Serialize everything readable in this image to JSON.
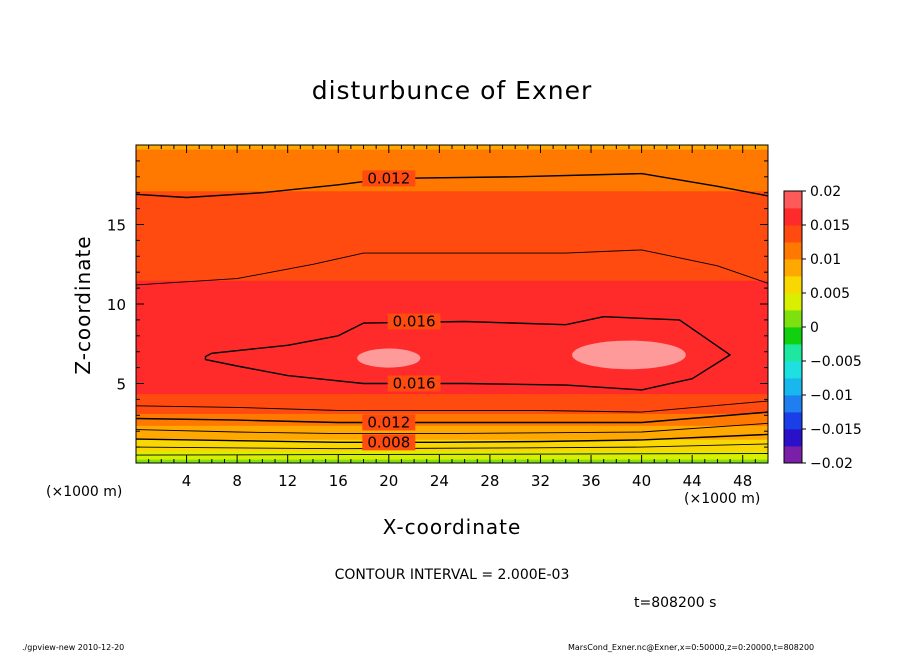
{
  "chart_data": {
    "type": "contour",
    "title": "disturbunce of Exner",
    "xlabel": "X-coordinate",
    "ylabel": "Z-coordinate",
    "x_units": "(×1000 m)",
    "y_units": "(×1000 m)",
    "xlim": [
      0,
      50
    ],
    "ylim": [
      0,
      20
    ],
    "x_ticks": [
      4,
      8,
      12,
      16,
      20,
      24,
      28,
      32,
      36,
      40,
      44,
      48
    ],
    "y_ticks": [
      5,
      10,
      15
    ],
    "colorbar": {
      "min": -0.02,
      "max": 0.02,
      "step": 0.0025,
      "tick_values": [
        0.02,
        0.015,
        0.01,
        0.005,
        0,
        -0.005,
        -0.01,
        -0.015,
        -0.02
      ],
      "tick_labels": [
        "0.02",
        "0.015",
        "0.01",
        "0.005",
        "0",
        "−0.005",
        "−0.01",
        "−0.015",
        "−0.02"
      ],
      "colors": [
        "#7a1fa8",
        "#2a10c8",
        "#1a3fe8",
        "#1f7ff0",
        "#18b8ee",
        "#1ee0e0",
        "#1ee8a0",
        "#10d010",
        "#7fe010",
        "#d8f000",
        "#f8d800",
        "#ffa800",
        "#ff7800",
        "#ff4a10",
        "#ff2a2a",
        "#ff5a5a",
        "#ff9a9a"
      ]
    },
    "fill_profile": {
      "z": [
        0,
        0.5,
        1,
        1.5,
        2,
        2.5,
        3,
        3.5,
        4,
        4.5,
        5,
        6,
        7,
        8,
        9,
        10,
        11,
        12,
        13,
        14,
        15,
        16,
        17,
        18,
        19,
        20
      ],
      "value": [
        0.0015,
        0.004,
        0.006,
        0.0075,
        0.009,
        0.0105,
        0.012,
        0.0135,
        0.0145,
        0.0152,
        0.0158,
        0.0163,
        0.0165,
        0.0163,
        0.016,
        0.0156,
        0.0152,
        0.0148,
        0.0144,
        0.014,
        0.0136,
        0.0132,
        0.0126,
        0.0118,
        0.0108,
        0.0098
      ]
    },
    "contours": [
      {
        "level": 0.004,
        "label": "",
        "points": [
          [
            0,
            0.5
          ],
          [
            25,
            0.55
          ],
          [
            50,
            0.6
          ]
        ]
      },
      {
        "level": 0.006,
        "label": "",
        "points": [
          [
            0,
            1.0
          ],
          [
            16,
            0.9
          ],
          [
            30,
            0.95
          ],
          [
            40,
            1.0
          ],
          [
            50,
            1.2
          ]
        ]
      },
      {
        "level": 0.008,
        "label": "0.008",
        "points": [
          [
            0,
            1.5
          ],
          [
            8,
            1.4
          ],
          [
            16,
            1.3
          ],
          [
            24,
            1.3
          ],
          [
            32,
            1.35
          ],
          [
            40,
            1.45
          ],
          [
            50,
            1.8
          ]
        ]
      },
      {
        "level": 0.01,
        "label": "",
        "points": [
          [
            0,
            2.1
          ],
          [
            8,
            1.95
          ],
          [
            16,
            1.85
          ],
          [
            24,
            1.85
          ],
          [
            32,
            1.9
          ],
          [
            40,
            1.95
          ],
          [
            50,
            2.5
          ]
        ]
      },
      {
        "level": 0.012,
        "label": "0.012",
        "points": [
          [
            0,
            2.8
          ],
          [
            8,
            2.7
          ],
          [
            16,
            2.55
          ],
          [
            24,
            2.55
          ],
          [
            32,
            2.55
          ],
          [
            40,
            2.55
          ],
          [
            50,
            3.2
          ]
        ]
      },
      {
        "level": 0.014,
        "label": "",
        "points": [
          [
            0,
            3.6
          ],
          [
            8,
            3.5
          ],
          [
            16,
            3.3
          ],
          [
            24,
            3.3
          ],
          [
            32,
            3.3
          ],
          [
            40,
            3.2
          ],
          [
            50,
            3.9
          ]
        ]
      },
      {
        "level": 0.016,
        "label": "0.016",
        "closed": true,
        "points": [
          [
            5.5,
            6.7
          ],
          [
            6,
            6.9
          ],
          [
            12,
            7.4
          ],
          [
            16,
            8.0
          ],
          [
            18,
            8.8
          ],
          [
            26,
            8.9
          ],
          [
            34,
            8.7
          ],
          [
            37,
            9.2
          ],
          [
            43,
            9.0
          ],
          [
            47,
            6.8
          ],
          [
            44,
            5.3
          ],
          [
            40,
            4.6
          ],
          [
            34,
            4.9
          ],
          [
            26,
            5.0
          ],
          [
            18,
            5.0
          ],
          [
            12,
            5.5
          ],
          [
            8,
            6.1
          ],
          [
            5.5,
            6.5
          ]
        ]
      },
      {
        "level": 0.014,
        "label": "",
        "points": [
          [
            0,
            11.2
          ],
          [
            8,
            11.6
          ],
          [
            14,
            12.5
          ],
          [
            18,
            13.2
          ],
          [
            26,
            13.2
          ],
          [
            34,
            13.2
          ],
          [
            40,
            13.4
          ],
          [
            46,
            12.4
          ],
          [
            50,
            11.3
          ]
        ]
      },
      {
        "level": 0.012,
        "label": "0.012",
        "points": [
          [
            0,
            16.9
          ],
          [
            4,
            16.7
          ],
          [
            10,
            17.0
          ],
          [
            16,
            17.5
          ],
          [
            20,
            17.9
          ],
          [
            30,
            18.0
          ],
          [
            40,
            18.2
          ],
          [
            46,
            17.4
          ],
          [
            50,
            16.8
          ]
        ]
      }
    ],
    "highlights": [
      {
        "x": 20,
        "z": 6.6,
        "rx": 2.5,
        "rz": 0.6
      },
      {
        "x": 39,
        "z": 6.8,
        "rx": 4.5,
        "rz": 0.9
      }
    ],
    "grid": false,
    "legend": "colorbar-right"
  },
  "annotations": {
    "contour_interval": "CONTOUR INTERVAL = 2.000E-03",
    "time": "t=808200 s",
    "footer_left": "./gpview-new   2010-12-20",
    "footer_right": "MarsCond_Exner.nc@Exner,x=0:50000,z=0:20000,t=808200"
  }
}
